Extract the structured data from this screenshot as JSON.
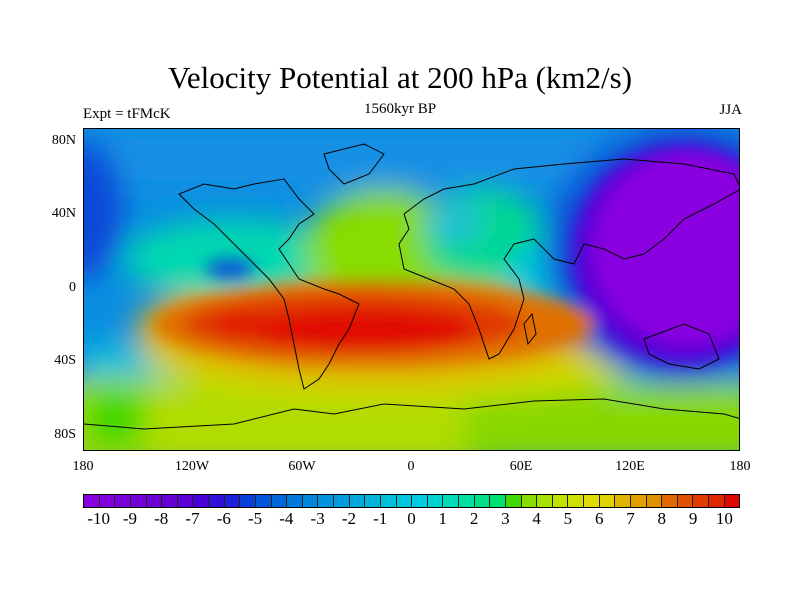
{
  "header": {
    "title": "Velocity Potential at 200 hPa (km2/s)",
    "left_string": "Expt = tFMcK",
    "center_string": "1560kyr BP",
    "right_string": "JJA"
  },
  "chart_data": {
    "type": "heatmap",
    "title": "Velocity Potential at 200 hPa (km2/s)",
    "projection": "cylindrical equidistant",
    "xlim": [
      -180,
      180
    ],
    "ylim": [
      -90,
      90
    ],
    "y_ticks": [
      "80N",
      "40N",
      "0",
      "40S",
      "80S"
    ],
    "x_ticks": [
      "180",
      "120W",
      "60W",
      "0",
      "60E",
      "120E",
      "180"
    ],
    "features": [
      {
        "name": "minimum over western Pacific / East Asia",
        "lon": 150,
        "lat": 20,
        "value": -10
      },
      {
        "name": "maximum over South Atlantic / South America",
        "lon": -40,
        "lat": -25,
        "value": 10
      },
      {
        "name": "local minimum off Central America",
        "lon": -100,
        "lat": 10,
        "value": -5
      }
    ],
    "colorbar": {
      "labels": [
        "-10",
        "-9",
        "-8",
        "-7",
        "-6",
        "-5",
        "-4",
        "-3",
        "-2",
        "-1",
        "0",
        "1",
        "2",
        "3",
        "4",
        "5",
        "6",
        "7",
        "8",
        "9",
        "10"
      ],
      "range": [
        -10,
        10
      ],
      "interval": 0.5,
      "colors": [
        "#8a00e0",
        "#8000dc",
        "#7a00da",
        "#7400d8",
        "#6e00d6",
        "#6800d6",
        "#5c00d8",
        "#4800d8",
        "#3010d8",
        "#1c20d8",
        "#0a40d8",
        "#0058d8",
        "#0068d8",
        "#0078da",
        "#0088dc",
        "#0094dc",
        "#009cdc",
        "#00a8dc",
        "#00b4dc",
        "#00c0dc",
        "#00c8dc",
        "#00cce0",
        "#00d4d0",
        "#00dcb8",
        "#00e0a0",
        "#00e088",
        "#00e070",
        "#40d800",
        "#88dc00",
        "#a8e000",
        "#c0e000",
        "#d0e000",
        "#e0dc00",
        "#e0d400",
        "#e0b400",
        "#e0a000",
        "#e09000",
        "#e06800",
        "#e05000",
        "#e03c00",
        "#e02800",
        "#e00800"
      ]
    }
  }
}
